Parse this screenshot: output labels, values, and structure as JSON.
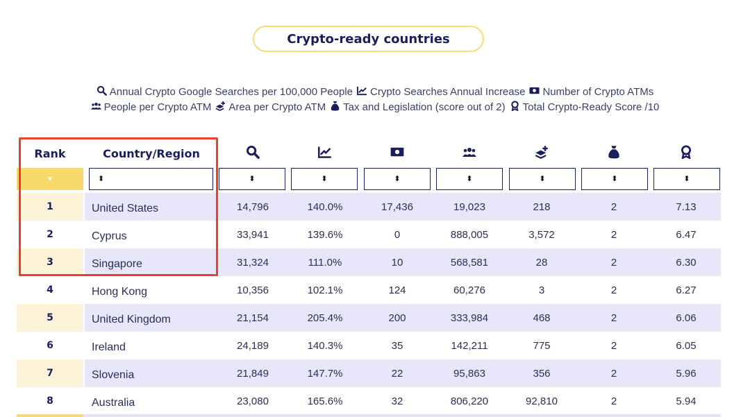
{
  "title": "Crypto-ready countries",
  "legend": {
    "line1": [
      {
        "icon": "search-icon",
        "label": "Annual Crypto Google Searches per 100,000 People"
      },
      {
        "icon": "trend-chart-icon",
        "label": "Crypto Searches Annual Increase"
      },
      {
        "icon": "money-icon",
        "label": "Number of Crypto ATMs"
      }
    ],
    "line2": [
      {
        "icon": "people-icon",
        "label": "People per Crypto ATM"
      },
      {
        "icon": "layers-plus-icon",
        "label": "Area per Crypto ATM"
      },
      {
        "icon": "money-bag-icon",
        "label": "Tax and Legislation (score out of 2)"
      },
      {
        "icon": "award-icon",
        "label": "Total Crypto-Ready Score /10"
      }
    ]
  },
  "columns": {
    "rank": "Rank",
    "country": "Country/Region",
    "icons": [
      "search-icon",
      "trend-chart-icon",
      "money-icon",
      "people-icon",
      "layers-plus-icon",
      "money-bag-icon",
      "award-icon"
    ]
  },
  "filters": {
    "rank_glyph": "▾",
    "sort_glyph": "⬍"
  },
  "rows": [
    {
      "rank": "1",
      "country": "United States",
      "searches": "14,796",
      "increase": "140.0%",
      "atms": "17,436",
      "people_per_atm": "19,023",
      "area_per_atm": "218",
      "tax": "2",
      "score": "7.13"
    },
    {
      "rank": "2",
      "country": "Cyprus",
      "searches": "33,941",
      "increase": "139.6%",
      "atms": "0",
      "people_per_atm": "888,005",
      "area_per_atm": "3,572",
      "tax": "2",
      "score": "6.47"
    },
    {
      "rank": "3",
      "country": "Singapore",
      "searches": "31,324",
      "increase": "111.0%",
      "atms": "10",
      "people_per_atm": "568,581",
      "area_per_atm": "28",
      "tax": "2",
      "score": "6.30"
    },
    {
      "rank": "4",
      "country": "Hong Kong",
      "searches": "10,356",
      "increase": "102.1%",
      "atms": "124",
      "people_per_atm": "60,276",
      "area_per_atm": "3",
      "tax": "2",
      "score": "6.27"
    },
    {
      "rank": "5",
      "country": "United Kingdom",
      "searches": "21,154",
      "increase": "205.4%",
      "atms": "200",
      "people_per_atm": "333,984",
      "area_per_atm": "468",
      "tax": "2",
      "score": "6.06"
    },
    {
      "rank": "6",
      "country": "Ireland",
      "searches": "24,189",
      "increase": "140.3%",
      "atms": "35",
      "people_per_atm": "142,211",
      "area_per_atm": "775",
      "tax": "2",
      "score": "6.05"
    },
    {
      "rank": "7",
      "country": "Slovenia",
      "searches": "21,849",
      "increase": "147.7%",
      "atms": "22",
      "people_per_atm": "95,863",
      "area_per_atm": "356",
      "tax": "2",
      "score": "5.96"
    },
    {
      "rank": "8",
      "country": "Australia",
      "searches": "23,080",
      "increase": "165.6%",
      "atms": "32",
      "people_per_atm": "806,220",
      "area_per_atm": "92,810",
      "tax": "2",
      "score": "5.94"
    }
  ],
  "colors": {
    "navy": "#1a1f5c",
    "accent_yellow": "#f8d96b",
    "row_shade": "#e8e6fb",
    "rank_shade": "#fdf3d8",
    "highlight_red": "#e8402a"
  }
}
